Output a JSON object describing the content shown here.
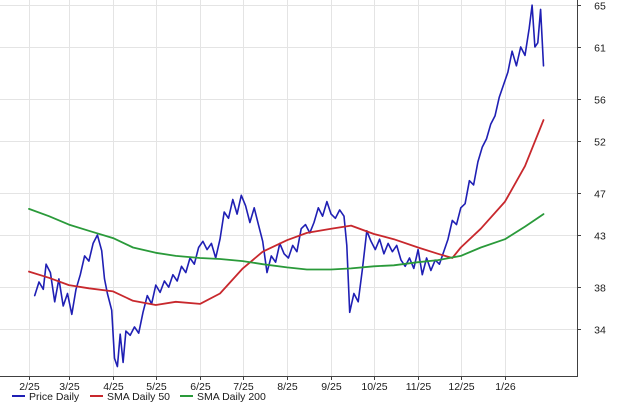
{
  "chart_data": {
    "type": "line",
    "title": "",
    "xlabel": "",
    "ylabel": "",
    "grid": true,
    "legend_position": "bottom-left",
    "y_axis_side": "right",
    "ylim": [
      29.5,
      65.5
    ],
    "xlim": [
      "2025-02-01",
      "2026-02-28"
    ],
    "x_ticks": [
      {
        "date": "2025-02-01",
        "label": "2/25"
      },
      {
        "date": "2025-03-01",
        "label": "3/25"
      },
      {
        "date": "2025-04-01",
        "label": "4/25"
      },
      {
        "date": "2025-05-01",
        "label": "5/25"
      },
      {
        "date": "2025-06-01",
        "label": "6/25"
      },
      {
        "date": "2025-07-01",
        "label": "7/25"
      },
      {
        "date": "2025-08-01",
        "label": "8/25"
      },
      {
        "date": "2025-09-01",
        "label": "9/25"
      },
      {
        "date": "2025-10-01",
        "label": "10/25"
      },
      {
        "date": "2025-11-01",
        "label": "11/25"
      },
      {
        "date": "2025-12-01",
        "label": "12/25"
      },
      {
        "date": "2026-01-01",
        "label": "1/26"
      }
    ],
    "y_ticks": [
      34,
      38,
      43,
      47,
      52,
      56,
      61,
      65
    ],
    "series": [
      {
        "name": "Price Daily",
        "color": "#1f1fb4",
        "points": [
          [
            "2025-02-05",
            37.2
          ],
          [
            "2025-02-08",
            38.5
          ],
          [
            "2025-02-11",
            37.8
          ],
          [
            "2025-02-13",
            40.2
          ],
          [
            "2025-02-16",
            39.4
          ],
          [
            "2025-02-19",
            36.6
          ],
          [
            "2025-02-22",
            38.8
          ],
          [
            "2025-02-25",
            36.2
          ],
          [
            "2025-02-28",
            37.4
          ],
          [
            "2025-03-03",
            35.4
          ],
          [
            "2025-03-06",
            37.8
          ],
          [
            "2025-03-09",
            39.2
          ],
          [
            "2025-03-12",
            41.0
          ],
          [
            "2025-03-15",
            40.5
          ],
          [
            "2025-03-18",
            42.2
          ],
          [
            "2025-03-21",
            43.0
          ],
          [
            "2025-03-24",
            41.5
          ],
          [
            "2025-03-26",
            38.8
          ],
          [
            "2025-03-28",
            37.4
          ],
          [
            "2025-03-31",
            35.8
          ],
          [
            "2025-04-02",
            31.2
          ],
          [
            "2025-04-04",
            30.4
          ],
          [
            "2025-04-06",
            33.5
          ],
          [
            "2025-04-08",
            30.8
          ],
          [
            "2025-04-10",
            33.8
          ],
          [
            "2025-04-13",
            33.4
          ],
          [
            "2025-04-16",
            34.2
          ],
          [
            "2025-04-19",
            33.6
          ],
          [
            "2025-04-22",
            35.6
          ],
          [
            "2025-04-25",
            37.2
          ],
          [
            "2025-04-28",
            36.4
          ],
          [
            "2025-05-01",
            38.2
          ],
          [
            "2025-05-04",
            37.5
          ],
          [
            "2025-05-07",
            38.6
          ],
          [
            "2025-05-10",
            38.0
          ],
          [
            "2025-05-13",
            39.2
          ],
          [
            "2025-05-16",
            38.6
          ],
          [
            "2025-05-19",
            40.0
          ],
          [
            "2025-05-22",
            39.4
          ],
          [
            "2025-05-25",
            40.8
          ],
          [
            "2025-05-28",
            40.2
          ],
          [
            "2025-05-31",
            41.8
          ],
          [
            "2025-06-03",
            42.4
          ],
          [
            "2025-06-06",
            41.6
          ],
          [
            "2025-06-09",
            42.2
          ],
          [
            "2025-06-12",
            40.8
          ],
          [
            "2025-06-15",
            42.6
          ],
          [
            "2025-06-18",
            45.2
          ],
          [
            "2025-06-21",
            44.6
          ],
          [
            "2025-06-24",
            46.4
          ],
          [
            "2025-06-27",
            45.0
          ],
          [
            "2025-06-30",
            46.8
          ],
          [
            "2025-07-03",
            45.8
          ],
          [
            "2025-07-06",
            44.2
          ],
          [
            "2025-07-09",
            45.6
          ],
          [
            "2025-07-12",
            44.0
          ],
          [
            "2025-07-15",
            42.4
          ],
          [
            "2025-07-18",
            39.4
          ],
          [
            "2025-07-21",
            41.0
          ],
          [
            "2025-07-24",
            40.4
          ],
          [
            "2025-07-27",
            42.2
          ],
          [
            "2025-07-30",
            41.2
          ],
          [
            "2025-08-02",
            40.8
          ],
          [
            "2025-08-05",
            42.0
          ],
          [
            "2025-08-08",
            41.4
          ],
          [
            "2025-08-11",
            43.6
          ],
          [
            "2025-08-14",
            44.0
          ],
          [
            "2025-08-17",
            43.2
          ],
          [
            "2025-08-20",
            44.2
          ],
          [
            "2025-08-23",
            45.6
          ],
          [
            "2025-08-26",
            44.8
          ],
          [
            "2025-08-29",
            46.2
          ],
          [
            "2025-09-01",
            45.0
          ],
          [
            "2025-09-04",
            44.6
          ],
          [
            "2025-09-07",
            45.4
          ],
          [
            "2025-09-10",
            44.8
          ],
          [
            "2025-09-12",
            42.0
          ],
          [
            "2025-09-14",
            35.6
          ],
          [
            "2025-09-17",
            37.4
          ],
          [
            "2025-09-20",
            36.6
          ],
          [
            "2025-09-23",
            39.8
          ],
          [
            "2025-09-26",
            43.4
          ],
          [
            "2025-09-29",
            42.4
          ],
          [
            "2025-10-02",
            41.6
          ],
          [
            "2025-10-05",
            42.6
          ],
          [
            "2025-10-08",
            41.2
          ],
          [
            "2025-10-11",
            42.2
          ],
          [
            "2025-10-14",
            41.4
          ],
          [
            "2025-10-17",
            42.0
          ],
          [
            "2025-10-20",
            40.6
          ],
          [
            "2025-10-23",
            40.0
          ],
          [
            "2025-10-26",
            40.8
          ],
          [
            "2025-10-29",
            39.8
          ],
          [
            "2025-11-01",
            41.6
          ],
          [
            "2025-11-04",
            39.2
          ],
          [
            "2025-11-07",
            40.8
          ],
          [
            "2025-11-10",
            39.6
          ],
          [
            "2025-11-13",
            40.6
          ],
          [
            "2025-11-16",
            40.2
          ],
          [
            "2025-11-19",
            41.4
          ],
          [
            "2025-11-22",
            42.6
          ],
          [
            "2025-11-25",
            44.4
          ],
          [
            "2025-11-28",
            44.0
          ],
          [
            "2025-12-01",
            45.6
          ],
          [
            "2025-12-04",
            46.0
          ],
          [
            "2025-12-07",
            48.2
          ],
          [
            "2025-12-10",
            47.8
          ],
          [
            "2025-12-13",
            50.0
          ],
          [
            "2025-12-16",
            51.4
          ],
          [
            "2025-12-19",
            52.2
          ],
          [
            "2025-12-22",
            53.6
          ],
          [
            "2025-12-25",
            54.4
          ],
          [
            "2025-12-28",
            56.2
          ],
          [
            "2025-12-31",
            57.4
          ],
          [
            "2026-01-03",
            58.6
          ],
          [
            "2026-01-06",
            60.6
          ],
          [
            "2026-01-09",
            59.2
          ],
          [
            "2026-01-12",
            61.0
          ],
          [
            "2026-01-15",
            60.2
          ],
          [
            "2026-01-18",
            62.8
          ],
          [
            "2026-01-20",
            65.0
          ],
          [
            "2026-01-22",
            61.0
          ],
          [
            "2026-01-24",
            61.4
          ],
          [
            "2026-01-26",
            64.6
          ],
          [
            "2026-01-28",
            59.2
          ]
        ]
      },
      {
        "name": "SMA Daily 50",
        "color": "#c8282d",
        "points": [
          [
            "2025-02-01",
            39.5
          ],
          [
            "2025-02-15",
            38.9
          ],
          [
            "2025-03-01",
            38.2
          ],
          [
            "2025-03-15",
            37.9
          ],
          [
            "2025-04-01",
            37.6
          ],
          [
            "2025-04-15",
            36.7
          ],
          [
            "2025-05-01",
            36.3
          ],
          [
            "2025-05-15",
            36.6
          ],
          [
            "2025-06-01",
            36.4
          ],
          [
            "2025-06-15",
            37.4
          ],
          [
            "2025-07-01",
            39.8
          ],
          [
            "2025-07-15",
            41.4
          ],
          [
            "2025-08-01",
            42.5
          ],
          [
            "2025-08-15",
            43.2
          ],
          [
            "2025-09-01",
            43.6
          ],
          [
            "2025-09-15",
            43.9
          ],
          [
            "2025-10-01",
            43.1
          ],
          [
            "2025-10-15",
            42.6
          ],
          [
            "2025-11-01",
            41.8
          ],
          [
            "2025-11-15",
            41.2
          ],
          [
            "2025-11-25",
            40.8
          ],
          [
            "2025-12-01",
            41.8
          ],
          [
            "2025-12-15",
            43.6
          ],
          [
            "2026-01-01",
            46.2
          ],
          [
            "2026-01-15",
            49.6
          ],
          [
            "2026-01-28",
            54.0
          ]
        ]
      },
      {
        "name": "SMA Daily 200",
        "color": "#2a9a3a",
        "points": [
          [
            "2025-02-01",
            45.5
          ],
          [
            "2025-02-15",
            44.8
          ],
          [
            "2025-03-01",
            44.0
          ],
          [
            "2025-03-15",
            43.4
          ],
          [
            "2025-04-01",
            42.7
          ],
          [
            "2025-04-15",
            41.8
          ],
          [
            "2025-05-01",
            41.3
          ],
          [
            "2025-05-15",
            41.0
          ],
          [
            "2025-06-01",
            40.8
          ],
          [
            "2025-06-15",
            40.7
          ],
          [
            "2025-07-01",
            40.5
          ],
          [
            "2025-07-15",
            40.2
          ],
          [
            "2025-08-01",
            39.9
          ],
          [
            "2025-08-15",
            39.7
          ],
          [
            "2025-09-01",
            39.7
          ],
          [
            "2025-09-15",
            39.8
          ],
          [
            "2025-10-01",
            40.0
          ],
          [
            "2025-10-15",
            40.1
          ],
          [
            "2025-11-01",
            40.4
          ],
          [
            "2025-11-15",
            40.6
          ],
          [
            "2025-12-01",
            41.0
          ],
          [
            "2025-12-15",
            41.8
          ],
          [
            "2026-01-01",
            42.6
          ],
          [
            "2026-01-15",
            43.8
          ],
          [
            "2026-01-28",
            45.0
          ]
        ]
      }
    ]
  }
}
